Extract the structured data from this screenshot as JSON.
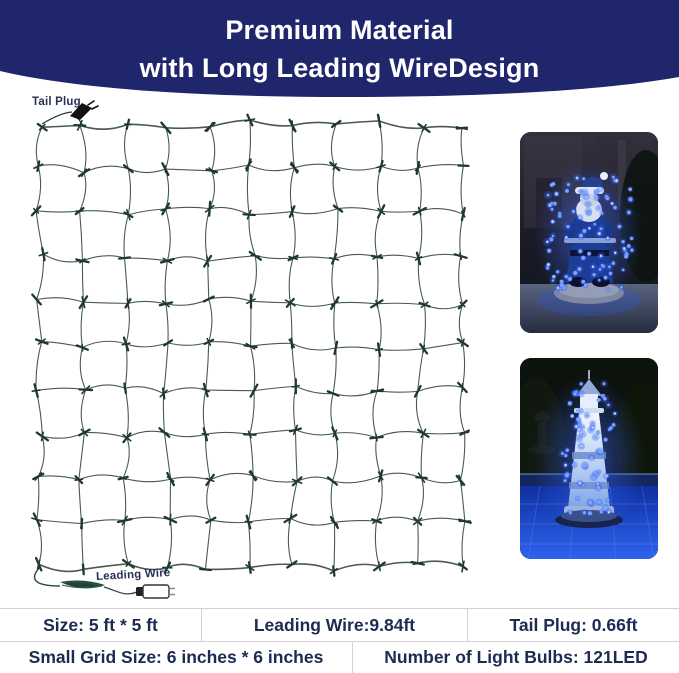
{
  "header": {
    "line1": "Premium Material",
    "line2": "with Long Leading WireDesign",
    "background_color": "#20266b",
    "text_color": "#ffffff"
  },
  "net_diagram": {
    "tail_plug_label": "Tail Plug",
    "leading_wire_label": "Leading Wire",
    "grid": {
      "rows": 10,
      "cols": 10,
      "wire_color": "#4a5a50",
      "knot_color": "#1e3a2b"
    }
  },
  "photos": {
    "top": {
      "name": "santa-statue-blue-net-lights"
    },
    "bottom": {
      "name": "lighthouse-blue-net-lights"
    },
    "light_color": "#4f7bff"
  },
  "spec_table": {
    "row1": [
      "Size: 5 ft * 5 ft",
      "Leading Wire:9.84ft",
      "Tail Plug: 0.66ft"
    ],
    "row2": [
      "Small Grid Size: 6 inches * 6 inches",
      "Number of Light Bulbs: 121LED"
    ],
    "text_color": "#1d2b52",
    "border_color": "#d2d2d2"
  }
}
